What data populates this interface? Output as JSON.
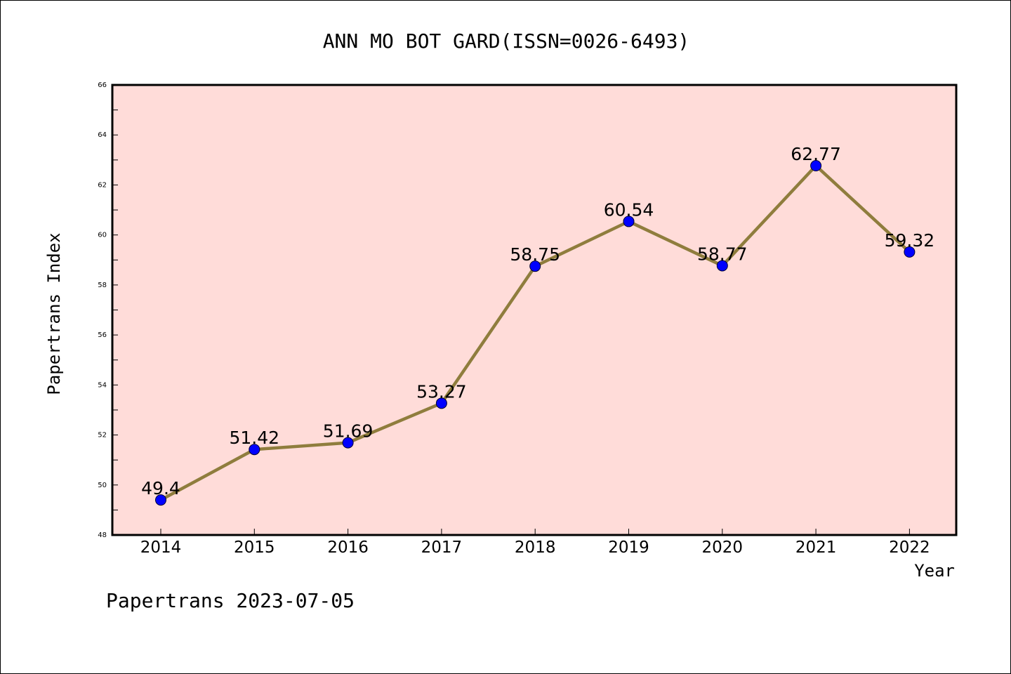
{
  "chart_data": {
    "type": "line",
    "title": "ANN MO BOT GARD(ISSN=0026-6493)",
    "xlabel": "Year",
    "ylabel": "Papertrans Index",
    "x": [
      "2014",
      "2015",
      "2016",
      "2017",
      "2018",
      "2019",
      "2020",
      "2021",
      "2022"
    ],
    "series": [
      {
        "values": [
          49.4,
          51.42,
          51.69,
          53.27,
          58.75,
          60.54,
          58.77,
          62.77,
          59.32
        ],
        "labels": [
          "49.4",
          "51.42",
          "51.69",
          "53.27",
          "58.75",
          "60.54",
          "58.77",
          "62.77",
          "59.32"
        ]
      }
    ],
    "ylim": [
      48,
      66
    ],
    "yticks": [
      "48",
      "50",
      "52",
      "54",
      "56",
      "58",
      "60",
      "62",
      "64",
      "66"
    ],
    "grid": false,
    "colors": {
      "plot_background": "#ffdcd9",
      "line": "#8f7d3d",
      "marker": "#0000ff"
    }
  },
  "footer": "Papertrans 2023-07-05"
}
